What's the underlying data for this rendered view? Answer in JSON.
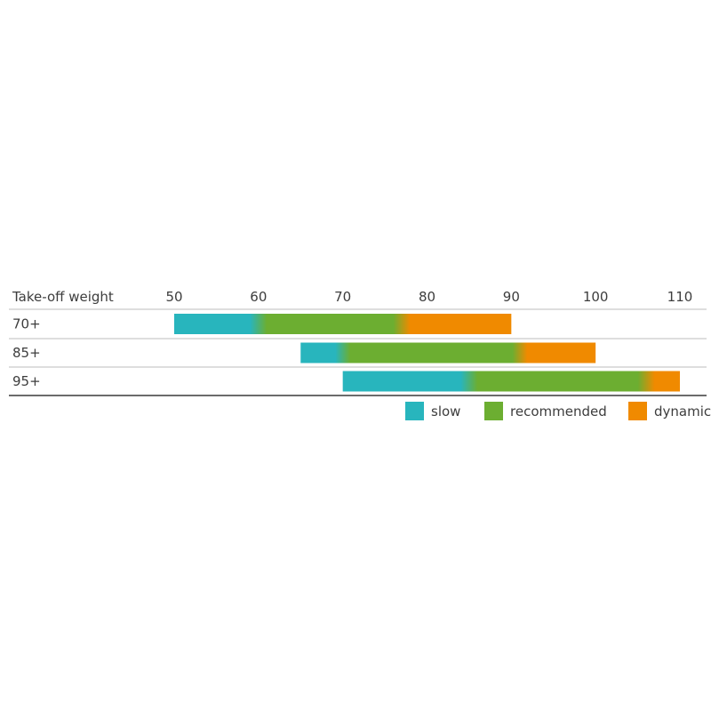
{
  "chart_data": {
    "type": "bar",
    "xlabel": "Take-off weight",
    "x_ticks": [
      50,
      60,
      70,
      80,
      90,
      100,
      110
    ],
    "xlim": [
      50,
      110
    ],
    "categories": [
      "70+",
      "85+",
      "95+"
    ],
    "series": [
      {
        "name": "slow",
        "start": [
          50,
          65,
          70
        ],
        "end": [
          60,
          70,
          85
        ]
      },
      {
        "name": "recommended",
        "start": [
          60,
          70,
          85
        ],
        "end": [
          77,
          91,
          106
        ]
      },
      {
        "name": "dynamic",
        "start": [
          77,
          91,
          106
        ],
        "end": [
          90,
          100,
          110
        ]
      }
    ],
    "legend_position": "bottom-right",
    "colors": {
      "slow": "#28b5bd",
      "recommended": "#6cae31",
      "dynamic": "#f08a00"
    }
  }
}
